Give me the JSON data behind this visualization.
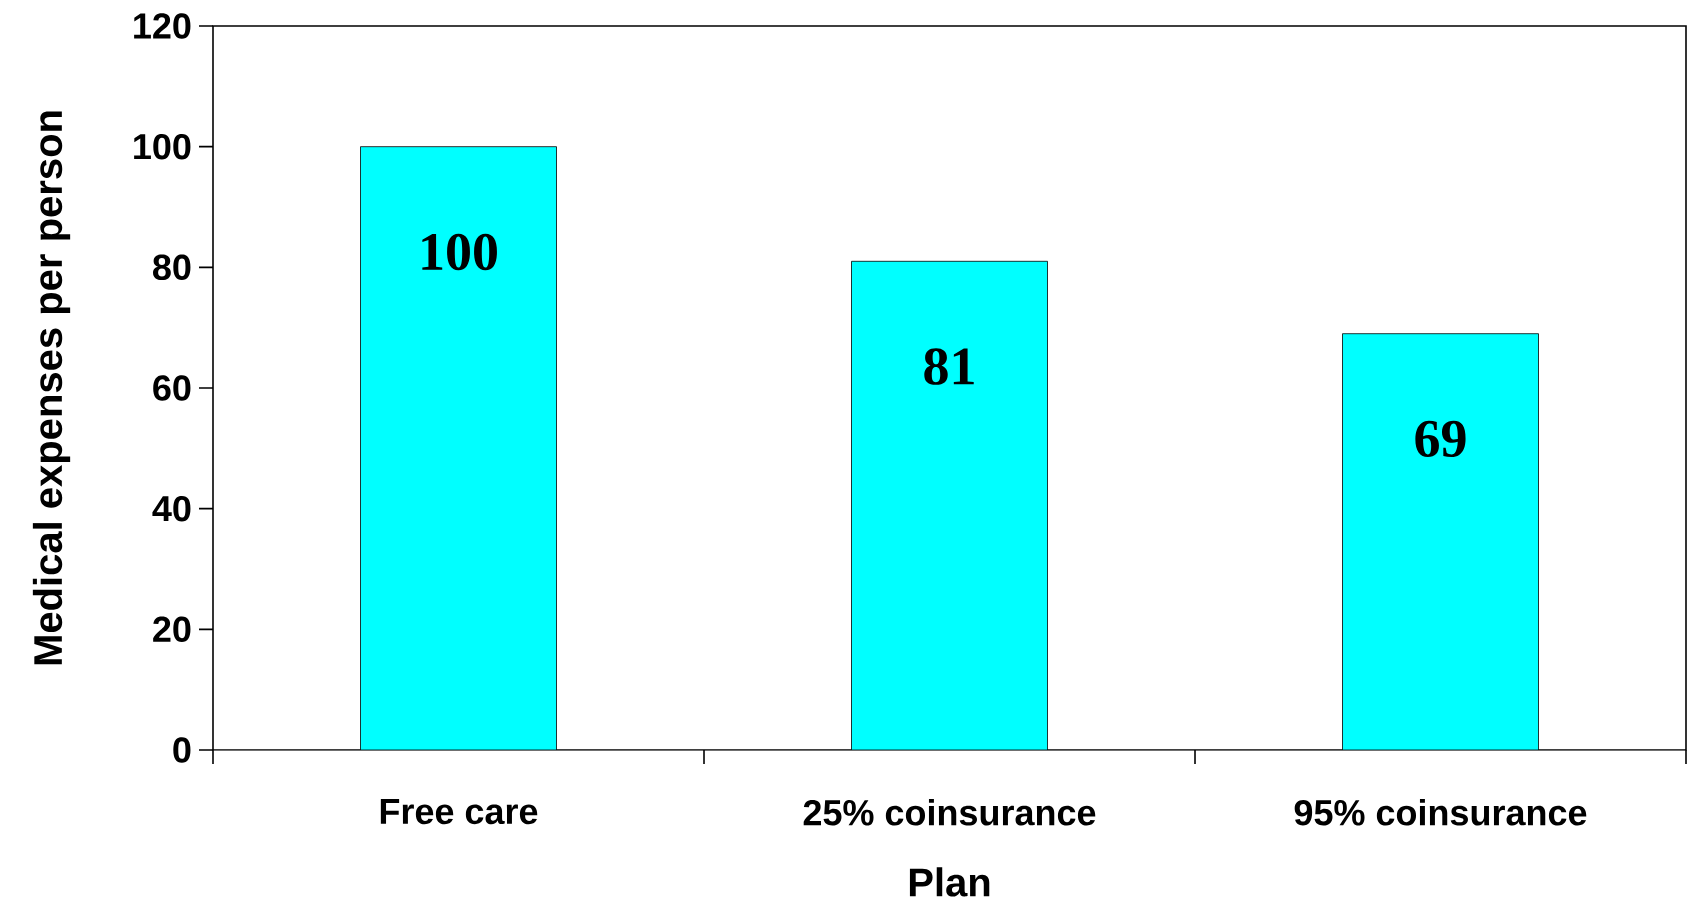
{
  "chart_data": {
    "type": "bar",
    "xlabel": "Plan",
    "ylabel": "Medical expenses per person",
    "categories": [
      "Free care",
      "25% coinsurance",
      "95% coinsurance"
    ],
    "values": [
      100,
      81,
      69
    ],
    "color": "#00ffff",
    "data_labels": true,
    "ylim": [
      0,
      120
    ],
    "yticks": [
      0,
      20,
      40,
      60,
      80,
      100,
      120
    ],
    "grid": false
  }
}
